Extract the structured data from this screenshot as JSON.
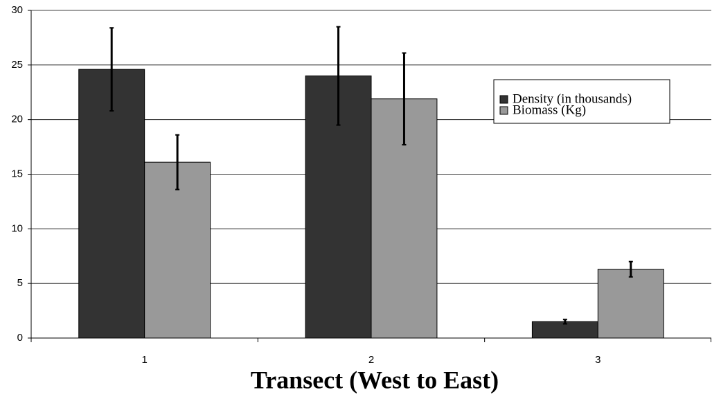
{
  "chart_data": {
    "type": "bar",
    "xlabel": "Transect (West to East)",
    "categories": [
      "1",
      "2",
      "3"
    ],
    "series": [
      {
        "name": "Density (in thousands)",
        "color": "#333333",
        "values": [
          24.6,
          24.0,
          1.5
        ],
        "errors": [
          3.8,
          4.5,
          0.2
        ]
      },
      {
        "name": "Biomass (Kg)",
        "color": "#999999",
        "values": [
          16.1,
          21.9,
          6.3
        ],
        "errors": [
          2.5,
          4.2,
          0.7
        ]
      }
    ],
    "ylim": [
      0,
      30
    ],
    "yticks": [
      0,
      5,
      10,
      15,
      20,
      25,
      30
    ],
    "grid": true,
    "legend": "upper right"
  }
}
